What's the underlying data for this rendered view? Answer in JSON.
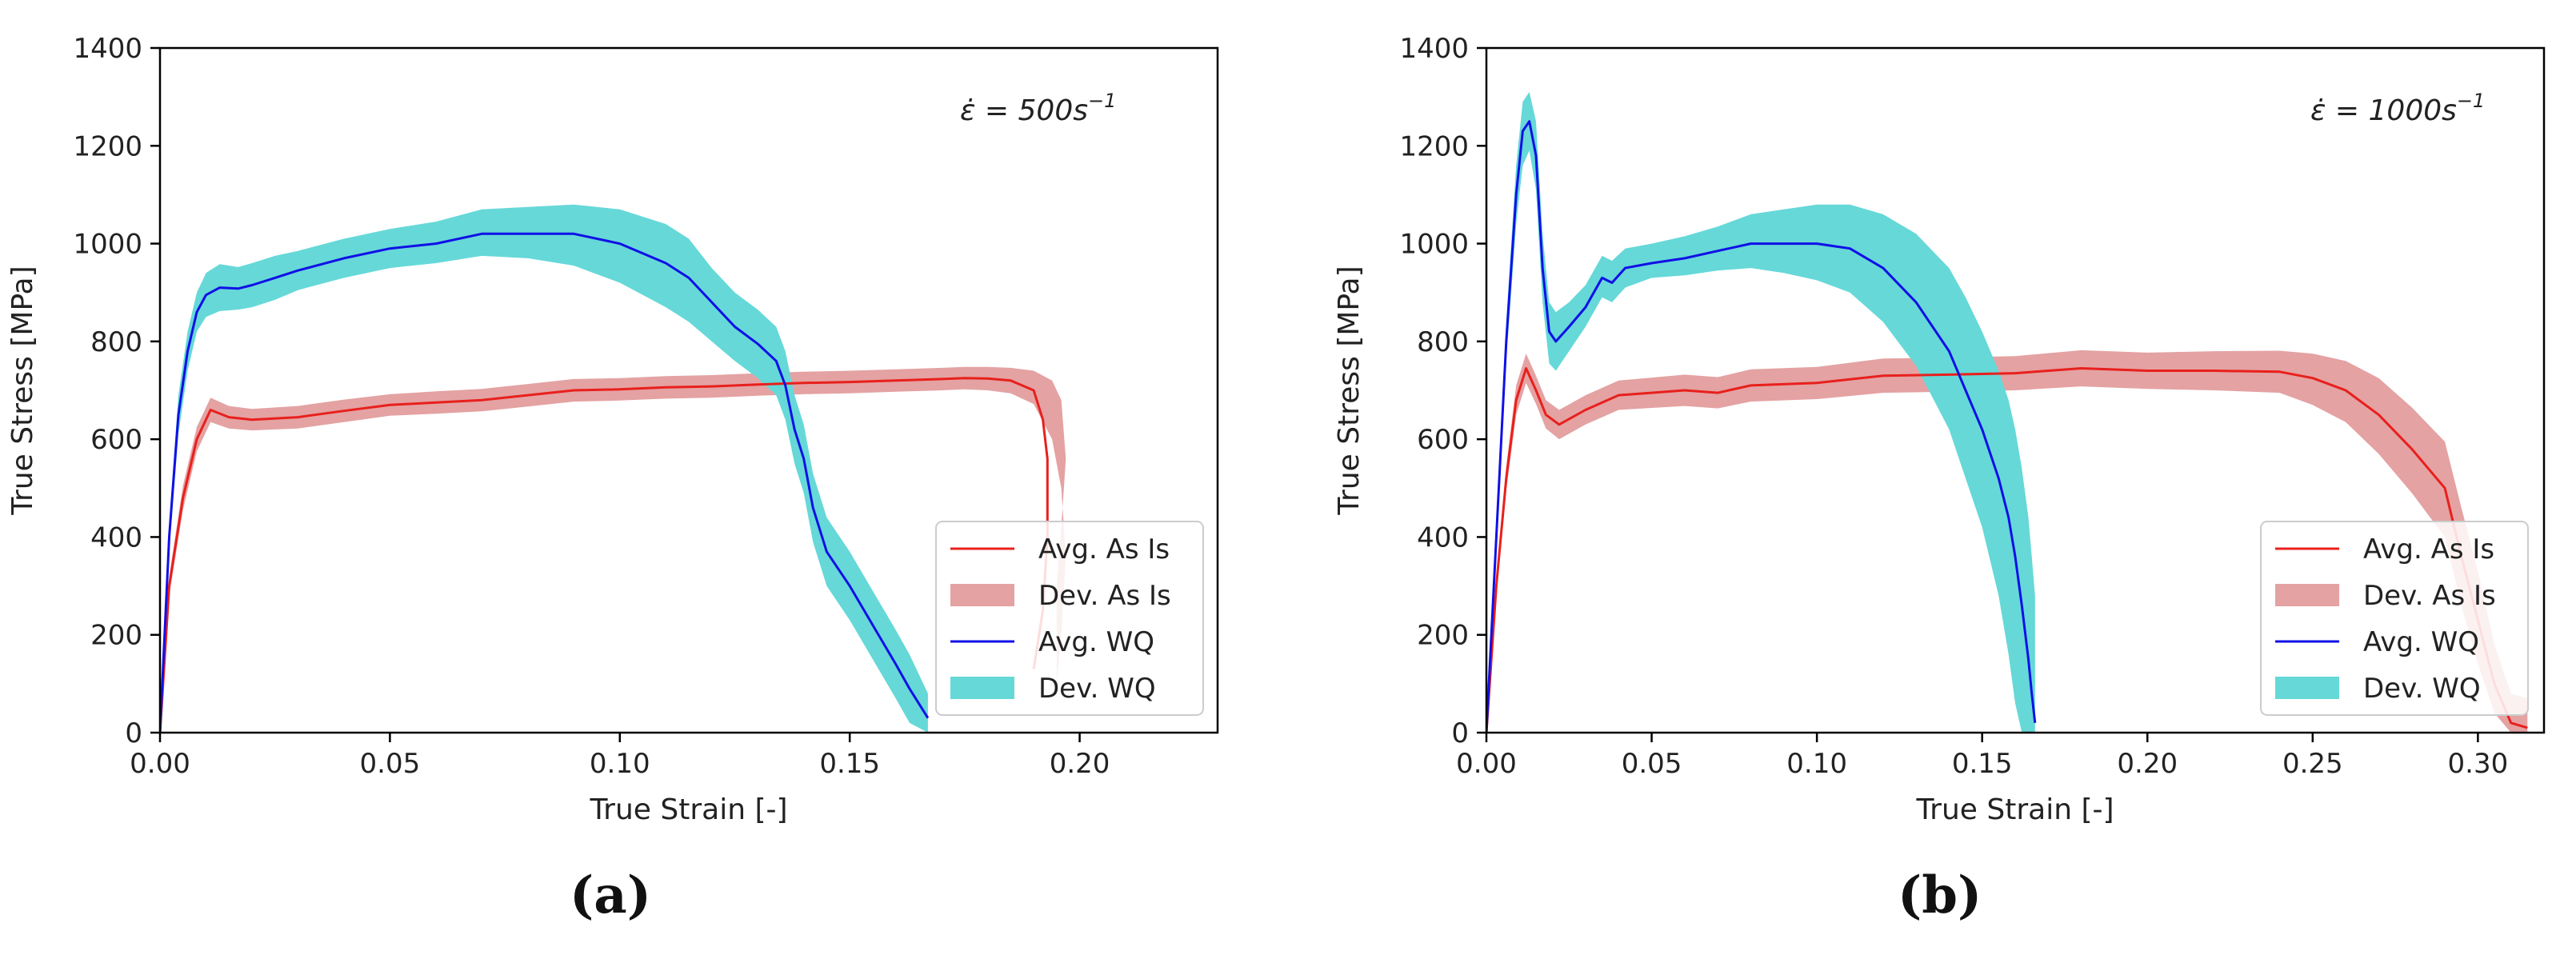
{
  "chart_data": [
    {
      "type": "line",
      "panel_label": "(a)",
      "rate_prefix": "ε̇ = 500s",
      "rate_exp": "−1",
      "xlabel": "True Strain [-]",
      "ylabel": "True Stress [MPa]",
      "xlim": [
        0,
        0.23
      ],
      "ylim": [
        0,
        1400
      ],
      "xticks": [
        0.0,
        0.05,
        0.1,
        0.15,
        0.2
      ],
      "xtick_labels": [
        "0.00",
        "0.05",
        "0.10",
        "0.15",
        "0.20"
      ],
      "yticks": [
        0,
        200,
        400,
        600,
        800,
        1000,
        1200,
        1400
      ],
      "ytick_labels": [
        "0",
        "200",
        "400",
        "600",
        "800",
        "1000",
        "1200",
        "1400"
      ],
      "grid": false,
      "legend_position": "lower-right",
      "legend": [
        "Avg. As Is",
        "Dev. As Is",
        "Avg. WQ",
        "Dev. WQ"
      ],
      "series": [
        {
          "name": "Avg. As Is",
          "kind": "line",
          "color": "#e8201c",
          "x": [
            0,
            0.002,
            0.005,
            0.008,
            0.011,
            0.015,
            0.02,
            0.03,
            0.04,
            0.05,
            0.06,
            0.07,
            0.08,
            0.09,
            0.1,
            0.11,
            0.12,
            0.13,
            0.14,
            0.15,
            0.16,
            0.17,
            0.175,
            0.18,
            0.185,
            0.19,
            0.192,
            0.193,
            0.193,
            0.192,
            0.19
          ],
          "y": [
            0,
            300,
            480,
            600,
            660,
            645,
            640,
            645,
            658,
            670,
            675,
            680,
            690,
            700,
            702,
            706,
            708,
            712,
            715,
            717,
            720,
            723,
            725,
            724,
            720,
            700,
            640,
            560,
            400,
            250,
            130
          ]
        },
        {
          "name": "Dev. As Is",
          "kind": "band",
          "color": "#d97b7c",
          "opacity": 0.7,
          "x": [
            0,
            0.002,
            0.005,
            0.008,
            0.011,
            0.015,
            0.02,
            0.03,
            0.04,
            0.05,
            0.06,
            0.07,
            0.08,
            0.09,
            0.1,
            0.11,
            0.12,
            0.13,
            0.14,
            0.15,
            0.16,
            0.17,
            0.175,
            0.18,
            0.185,
            0.19,
            0.194,
            0.196,
            0.197,
            0.196,
            0.195
          ],
          "lower": [
            0,
            280,
            455,
            575,
            635,
            622,
            618,
            622,
            635,
            648,
            652,
            657,
            667,
            677,
            679,
            683,
            685,
            689,
            692,
            694,
            697,
            700,
            702,
            700,
            694,
            672,
            600,
            500,
            360,
            200,
            100
          ],
          "upper": [
            0,
            320,
            505,
            625,
            685,
            668,
            662,
            668,
            681,
            692,
            698,
            703,
            713,
            723,
            725,
            729,
            731,
            735,
            738,
            740,
            743,
            746,
            748,
            748,
            746,
            740,
            720,
            680,
            560,
            420,
            300
          ]
        },
        {
          "name": "Avg. WQ",
          "kind": "line",
          "color": "#1010e6",
          "x": [
            0,
            0.002,
            0.004,
            0.006,
            0.008,
            0.01,
            0.013,
            0.017,
            0.02,
            0.025,
            0.03,
            0.04,
            0.05,
            0.06,
            0.07,
            0.08,
            0.09,
            0.1,
            0.11,
            0.115,
            0.12,
            0.125,
            0.13,
            0.134,
            0.136,
            0.138,
            0.14,
            0.142,
            0.145,
            0.15,
            0.155,
            0.16,
            0.163,
            0.167
          ],
          "y": [
            0,
            400,
            650,
            780,
            860,
            895,
            910,
            908,
            915,
            930,
            945,
            970,
            990,
            1000,
            1020,
            1020,
            1020,
            1000,
            960,
            930,
            880,
            830,
            795,
            760,
            710,
            620,
            560,
            460,
            370,
            300,
            220,
            140,
            90,
            30
          ]
        },
        {
          "name": "Dev. WQ",
          "kind": "band",
          "color": "#66d8d8",
          "opacity": 1.0,
          "x": [
            0,
            0.002,
            0.004,
            0.006,
            0.008,
            0.01,
            0.013,
            0.017,
            0.02,
            0.025,
            0.03,
            0.04,
            0.05,
            0.06,
            0.07,
            0.08,
            0.09,
            0.1,
            0.11,
            0.115,
            0.12,
            0.125,
            0.13,
            0.134,
            0.136,
            0.138,
            0.14,
            0.142,
            0.145,
            0.15,
            0.155,
            0.16,
            0.163,
            0.167
          ],
          "lower": [
            0,
            370,
            610,
            740,
            820,
            850,
            862,
            865,
            870,
            885,
            905,
            930,
            950,
            960,
            975,
            970,
            955,
            920,
            870,
            840,
            800,
            760,
            725,
            690,
            640,
            550,
            490,
            390,
            300,
            230,
            150,
            70,
            20,
            0
          ],
          "upper": [
            0,
            430,
            690,
            820,
            900,
            940,
            958,
            952,
            960,
            975,
            985,
            1010,
            1030,
            1045,
            1070,
            1075,
            1080,
            1070,
            1040,
            1010,
            950,
            900,
            865,
            830,
            780,
            690,
            630,
            530,
            440,
            370,
            290,
            210,
            160,
            80
          ]
        }
      ]
    },
    {
      "type": "line",
      "panel_label": "(b)",
      "rate_prefix": "ε̇ = 1000s",
      "rate_exp": "−1",
      "xlabel": "True Strain [-]",
      "ylabel": "True Stress [MPa]",
      "xlim": [
        0,
        0.32
      ],
      "ylim": [
        0,
        1400
      ],
      "xticks": [
        0.0,
        0.05,
        0.1,
        0.15,
        0.2,
        0.25,
        0.3
      ],
      "xtick_labels": [
        "0.00",
        "0.05",
        "0.10",
        "0.15",
        "0.20",
        "0.25",
        "0.30"
      ],
      "yticks": [
        0,
        200,
        400,
        600,
        800,
        1000,
        1200,
        1400
      ],
      "ytick_labels": [
        "0",
        "200",
        "400",
        "600",
        "800",
        "1000",
        "1200",
        "1400"
      ],
      "grid": false,
      "legend_position": "lower-right",
      "legend": [
        "Avg. As Is",
        "Dev. As Is",
        "Avg. WQ",
        "Dev. WQ"
      ],
      "series": [
        {
          "name": "Avg. As Is",
          "kind": "line",
          "color": "#e8201c",
          "x": [
            0,
            0.003,
            0.006,
            0.009,
            0.012,
            0.015,
            0.018,
            0.022,
            0.03,
            0.04,
            0.05,
            0.06,
            0.07,
            0.08,
            0.1,
            0.12,
            0.14,
            0.16,
            0.18,
            0.2,
            0.22,
            0.24,
            0.25,
            0.26,
            0.27,
            0.28,
            0.29,
            0.295,
            0.3,
            0.305,
            0.31,
            0.315
          ],
          "y": [
            0,
            300,
            520,
            680,
            745,
            700,
            650,
            630,
            660,
            690,
            695,
            700,
            695,
            710,
            715,
            730,
            732,
            735,
            745,
            740,
            740,
            738,
            725,
            700,
            650,
            580,
            500,
            360,
            230,
            100,
            20,
            10
          ]
        },
        {
          "name": "Dev. As Is",
          "kind": "band",
          "color": "#d97b7c",
          "opacity": 0.7,
          "x": [
            0,
            0.003,
            0.006,
            0.009,
            0.012,
            0.015,
            0.018,
            0.022,
            0.03,
            0.04,
            0.05,
            0.06,
            0.07,
            0.08,
            0.1,
            0.12,
            0.14,
            0.16,
            0.18,
            0.2,
            0.22,
            0.24,
            0.25,
            0.26,
            0.27,
            0.28,
            0.29,
            0.295,
            0.3,
            0.305,
            0.31,
            0.315
          ],
          "lower": [
            0,
            280,
            495,
            650,
            715,
            672,
            622,
            600,
            630,
            660,
            664,
            668,
            663,
            677,
            682,
            695,
            697,
            700,
            708,
            703,
            700,
            695,
            670,
            635,
            570,
            490,
            400,
            260,
            140,
            40,
            0,
            0
          ],
          "upper": [
            0,
            320,
            545,
            710,
            775,
            730,
            680,
            660,
            690,
            720,
            726,
            732,
            727,
            743,
            748,
            765,
            767,
            770,
            782,
            777,
            780,
            781,
            775,
            760,
            725,
            665,
            595,
            460,
            330,
            180,
            80,
            70
          ]
        },
        {
          "name": "Avg. WQ",
          "kind": "line",
          "color": "#1010e6",
          "x": [
            0,
            0.003,
            0.006,
            0.009,
            0.011,
            0.013,
            0.015,
            0.017,
            0.019,
            0.021,
            0.025,
            0.03,
            0.035,
            0.038,
            0.042,
            0.05,
            0.06,
            0.07,
            0.08,
            0.09,
            0.1,
            0.11,
            0.12,
            0.13,
            0.14,
            0.145,
            0.15,
            0.155,
            0.158,
            0.16,
            0.162,
            0.164,
            0.165,
            0.166
          ],
          "y": [
            0,
            400,
            800,
            1100,
            1230,
            1250,
            1180,
            950,
            820,
            800,
            830,
            870,
            930,
            920,
            950,
            960,
            970,
            985,
            1000,
            1000,
            1000,
            990,
            950,
            880,
            780,
            700,
            620,
            520,
            440,
            360,
            260,
            150,
            80,
            20
          ]
        },
        {
          "name": "Dev. WQ",
          "kind": "band",
          "color": "#66d8d8",
          "opacity": 1.0,
          "x": [
            0,
            0.003,
            0.006,
            0.009,
            0.011,
            0.013,
            0.015,
            0.017,
            0.019,
            0.021,
            0.025,
            0.03,
            0.035,
            0.038,
            0.042,
            0.05,
            0.06,
            0.07,
            0.08,
            0.09,
            0.1,
            0.11,
            0.12,
            0.13,
            0.14,
            0.145,
            0.15,
            0.155,
            0.158,
            0.16,
            0.162,
            0.164,
            0.165,
            0.166
          ],
          "lower": [
            0,
            370,
            760,
            1040,
            1160,
            1190,
            1110,
            880,
            755,
            740,
            780,
            830,
            890,
            880,
            910,
            930,
            935,
            945,
            950,
            940,
            925,
            900,
            840,
            750,
            620,
            520,
            420,
            280,
            160,
            60,
            0,
            0,
            0,
            0
          ],
          "upper": [
            0,
            430,
            840,
            1160,
            1290,
            1310,
            1250,
            1020,
            880,
            860,
            880,
            915,
            975,
            965,
            990,
            1000,
            1015,
            1035,
            1060,
            1070,
            1080,
            1080,
            1060,
            1020,
            950,
            890,
            820,
            740,
            680,
            620,
            540,
            440,
            360,
            280
          ]
        }
      ]
    }
  ]
}
